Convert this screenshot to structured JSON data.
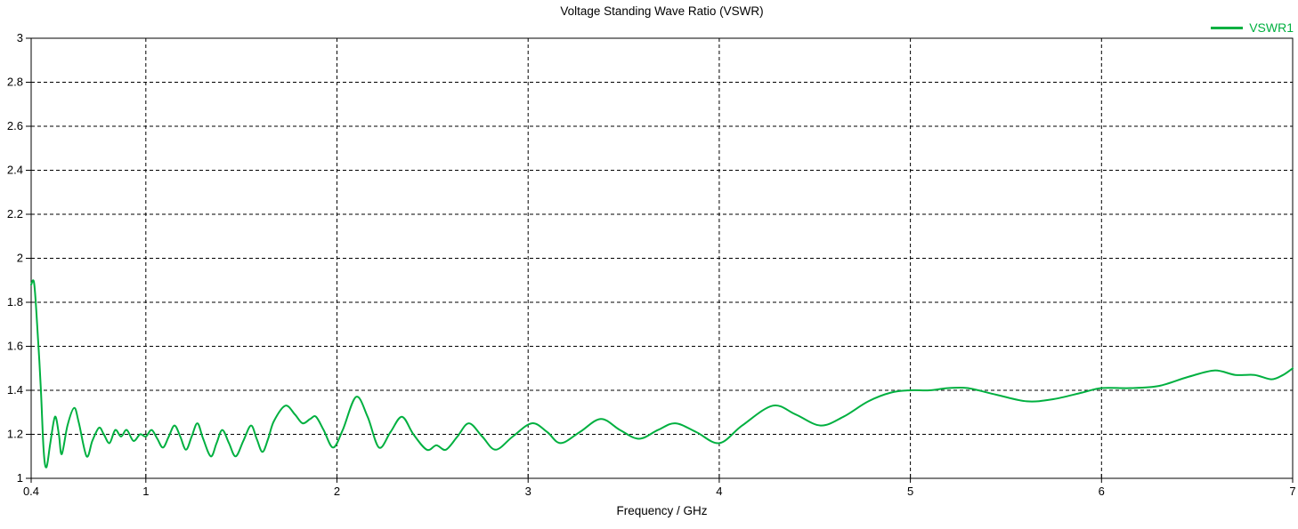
{
  "window": {
    "background": "#ffffff"
  },
  "chart_data": {
    "type": "line",
    "title": "Voltage Standing Wave Ratio (VSWR)",
    "xlabel": "Frequency / GHz",
    "ylabel": "",
    "xlim": [
      0.4,
      7
    ],
    "ylim": [
      1,
      3
    ],
    "x_ticks": [
      0.4,
      1,
      2,
      3,
      4,
      5,
      6,
      7
    ],
    "x_tick_labels": [
      "0.4",
      "1",
      "2",
      "3",
      "4",
      "5",
      "6",
      "7"
    ],
    "y_ticks": [
      1,
      1.2,
      1.4,
      1.6,
      1.8,
      2,
      2.2,
      2.4,
      2.6,
      2.8,
      3
    ],
    "y_tick_labels": [
      "1",
      "1.2",
      "1.4",
      "1.6",
      "1.8",
      "2",
      "2.2",
      "2.4",
      "2.6",
      "2.8",
      "3"
    ],
    "grid": true,
    "grid_style": "dashed",
    "grid_color": "#000000",
    "frame_color": "#000000",
    "text_color": "#000000",
    "legend_position": "top-right",
    "series": [
      {
        "name": "VSWR1",
        "color": "#00b040",
        "x": [
          0.4,
          0.415,
          0.43,
          0.45,
          0.465,
          0.48,
          0.5,
          0.525,
          0.545,
          0.56,
          0.59,
          0.625,
          0.65,
          0.69,
          0.72,
          0.755,
          0.78,
          0.81,
          0.84,
          0.87,
          0.9,
          0.935,
          0.97,
          1.0,
          1.03,
          1.06,
          1.09,
          1.12,
          1.15,
          1.18,
          1.21,
          1.24,
          1.27,
          1.3,
          1.34,
          1.37,
          1.4,
          1.435,
          1.47,
          1.51,
          1.55,
          1.58,
          1.61,
          1.64,
          1.67,
          1.73,
          1.78,
          1.82,
          1.86,
          1.89,
          1.93,
          1.98,
          2.03,
          2.1,
          2.16,
          2.22,
          2.28,
          2.34,
          2.4,
          2.47,
          2.52,
          2.57,
          2.63,
          2.69,
          2.76,
          2.83,
          2.92,
          3.02,
          3.1,
          3.17,
          3.27,
          3.38,
          3.48,
          3.58,
          3.68,
          3.77,
          3.88,
          4.0,
          4.12,
          4.28,
          4.4,
          4.53,
          4.65,
          4.78,
          4.9,
          5.0,
          5.1,
          5.2,
          5.3,
          5.45,
          5.61,
          5.75,
          5.9,
          6.0,
          6.15,
          6.3,
          6.45,
          6.59,
          6.7,
          6.8,
          6.89,
          6.95,
          7.0
        ],
        "y": [
          1.88,
          1.89,
          1.72,
          1.42,
          1.13,
          1.05,
          1.16,
          1.28,
          1.2,
          1.11,
          1.24,
          1.32,
          1.25,
          1.1,
          1.17,
          1.23,
          1.2,
          1.16,
          1.22,
          1.19,
          1.22,
          1.17,
          1.2,
          1.19,
          1.22,
          1.18,
          1.14,
          1.19,
          1.24,
          1.19,
          1.13,
          1.19,
          1.25,
          1.18,
          1.1,
          1.16,
          1.22,
          1.16,
          1.1,
          1.17,
          1.24,
          1.18,
          1.12,
          1.18,
          1.26,
          1.33,
          1.29,
          1.25,
          1.27,
          1.28,
          1.22,
          1.14,
          1.22,
          1.37,
          1.28,
          1.14,
          1.21,
          1.28,
          1.2,
          1.13,
          1.15,
          1.13,
          1.19,
          1.25,
          1.19,
          1.13,
          1.19,
          1.25,
          1.21,
          1.16,
          1.21,
          1.27,
          1.22,
          1.18,
          1.22,
          1.25,
          1.21,
          1.16,
          1.24,
          1.33,
          1.29,
          1.24,
          1.28,
          1.35,
          1.39,
          1.4,
          1.4,
          1.41,
          1.41,
          1.38,
          1.35,
          1.36,
          1.39,
          1.41,
          1.41,
          1.42,
          1.46,
          1.49,
          1.47,
          1.47,
          1.45,
          1.47,
          1.5
        ]
      }
    ]
  }
}
